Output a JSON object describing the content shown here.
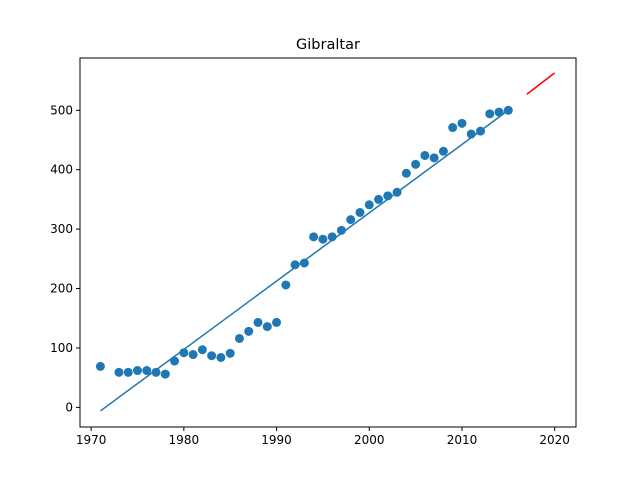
{
  "chart_data": {
    "type": "scatter",
    "title": "Gibraltar",
    "xlabel": "",
    "ylabel": "",
    "xlim": [
      1968.8,
      2022.3
    ],
    "ylim": [
      -33,
      588
    ],
    "x_ticks": [
      1970,
      1980,
      1990,
      2000,
      2010,
      2020
    ],
    "y_ticks": [
      0,
      100,
      200,
      300,
      400,
      500
    ],
    "grid": false,
    "colors": {
      "points": "#1f77b4",
      "fit": "#1f77b4",
      "forecast": "#ff0000"
    },
    "series": [
      {
        "kind": "scatter",
        "x": [
          1971,
          1973,
          1974,
          1975,
          1976,
          1977,
          1978,
          1979,
          1980,
          1981,
          1982,
          1983,
          1984,
          1985,
          1986,
          1987,
          1988,
          1989,
          1990,
          1991,
          1992,
          1993,
          1994,
          1995,
          1996,
          1997,
          1998,
          1999,
          2000,
          2001,
          2002,
          2003,
          2004,
          2005,
          2006,
          2007,
          2008,
          2009,
          2010,
          2011,
          2012,
          2013,
          2014,
          2015
        ],
        "y": [
          69,
          59,
          59,
          62,
          62,
          59,
          56,
          78,
          92,
          89,
          97,
          87,
          84,
          91,
          116,
          128,
          143,
          136,
          143,
          206,
          240,
          243,
          287,
          283,
          287,
          298,
          316,
          328,
          341,
          350,
          356,
          362,
          394,
          409,
          424,
          420,
          431,
          471,
          478,
          460,
          465,
          494,
          497,
          500
        ]
      },
      {
        "kind": "line",
        "x": [
          1971,
          2015
        ],
        "y": [
          -6,
          500
        ]
      },
      {
        "kind": "line",
        "x": [
          2017,
          2020
        ],
        "y": [
          527,
          563
        ]
      }
    ]
  }
}
